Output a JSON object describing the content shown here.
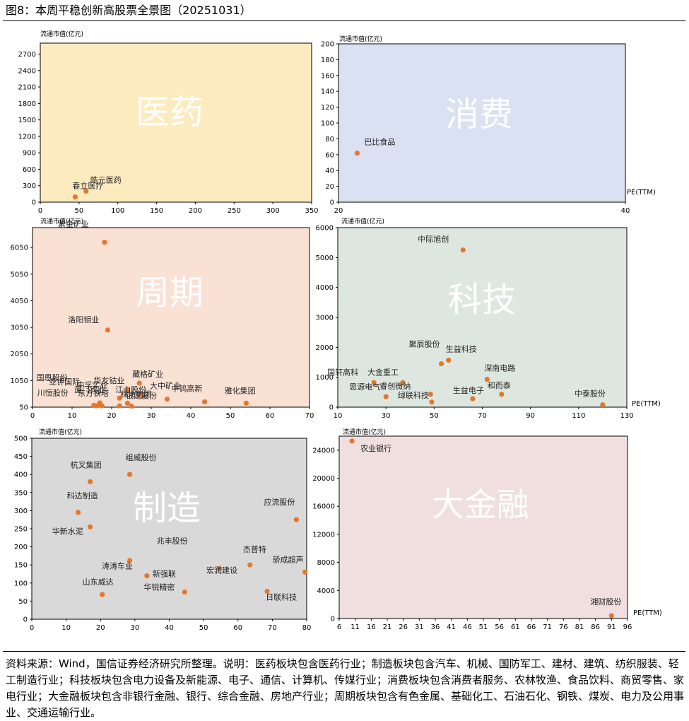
{
  "title": "图8：本周平稳创新高股票全景图（20251031）",
  "note": "资料来源：Wind，国信证券经济研究所整理。说明：医药板块包含医药行业；制造板块包含汽车、机械、国防军工、建材、建筑、纺织服装、轻工制造行业；科技板块包含电力设备及新能源、电子、通信、计算机、传媒行业；消费板块包含消费者服务、农林牧渔、食品饮料、商贸零售、家电行业；大金融板块包含非银行金融、银行、综合金融、房地产行业；周期板块包含有色金属、基础化工、石油石化、钢铁、煤炭、电力及公用事业、交通运输行业。",
  "colors": {
    "marker": "#E5772C",
    "watermark": "#ffffff"
  },
  "chart_data": [
    {
      "id": "pharma",
      "type": "scatter",
      "title": "医药",
      "bg": "#FDEBC0",
      "ylabel": "流通市值(亿元)",
      "xlabel": "",
      "xlim": [
        0,
        350
      ],
      "ylim": [
        0,
        2900
      ],
      "xticks": [
        0,
        50,
        100,
        150,
        200,
        250,
        300,
        350
      ],
      "yticks": [
        0,
        300,
        600,
        900,
        1200,
        1500,
        1800,
        2100,
        2400,
        2700
      ],
      "points": [
        {
          "name": "春立医疗",
          "x": 45,
          "y": 95
        },
        {
          "name": "皓元医药",
          "x": 59,
          "y": 200
        }
      ]
    },
    {
      "id": "consumer",
      "type": "scatter",
      "title": "消费",
      "bg": "#D9E1F3",
      "ylabel": "流通市值(亿元)",
      "xlabel": "PE(TTM)",
      "xlim": [
        20,
        40
      ],
      "ylim": [
        0,
        200
      ],
      "xticks": [
        20,
        40
      ],
      "yticks": [
        0,
        20,
        40,
        60,
        80,
        100,
        120,
        140,
        160,
        180,
        200
      ],
      "points": [
        {
          "name": "巴比食品",
          "x": 21.3,
          "y": 62
        }
      ]
    },
    {
      "id": "cyclical",
      "type": "scatter",
      "title": "周期",
      "bg": "#F9E1D4",
      "ylabel": "流通市值(亿元)",
      "xlabel": "",
      "xlim": [
        0,
        70
      ],
      "ylim": [
        50,
        6800
      ],
      "xticks": [
        0,
        10,
        20,
        30,
        40,
        50,
        60,
        70
      ],
      "yticks": [
        50,
        1050,
        2050,
        3050,
        4050,
        5050,
        6050
      ],
      "ytick_labels": [
        "50",
        "1050",
        "2050",
        "3050",
        "4050",
        "5050",
        "6050"
      ],
      "points": [
        {
          "name": "紫金矿业",
          "x": 18.2,
          "y": 6250
        },
        {
          "name": "洛阳钼业",
          "x": 19.0,
          "y": 2950
        },
        {
          "name": "华友钴业",
          "x": 24.0,
          "y": 720
        },
        {
          "name": "藏格矿业",
          "x": 27.0,
          "y": 950
        },
        {
          "name": "厦门钨业",
          "x": 22.0,
          "y": 390
        },
        {
          "name": "株冶集团",
          "x": 24.0,
          "y": 200
        },
        {
          "name": "大中矿业",
          "x": 27.5,
          "y": 460
        },
        {
          "name": "国恩股份",
          "x": 16.0,
          "y": 100
        },
        {
          "name": "亚钾国际",
          "x": 17.0,
          "y": 210
        },
        {
          "name": "中孚实业",
          "x": 16.5,
          "y": 110
        },
        {
          "name": "川恒股份",
          "x": 15.5,
          "y": 120
        },
        {
          "name": "东方铁塔",
          "x": 17.5,
          "y": 100
        },
        {
          "name": "江山股份",
          "x": 22.0,
          "y": 100
        },
        {
          "name": "银龙股份",
          "x": 25.0,
          "y": 90
        },
        {
          "name": "中钨高新",
          "x": 34.0,
          "y": 350
        },
        {
          "name": "雅化集团",
          "x": 43.5,
          "y": 250
        },
        {
          "name": "",
          "x": 54.0,
          "y": 200
        }
      ]
    },
    {
      "id": "tech",
      "type": "scatter",
      "title": "科技",
      "bg": "#DEE7DF",
      "ylabel": "流通市值(亿元)",
      "xlabel": "PE(TTM)",
      "xlim": [
        10,
        130
      ],
      "ylim": [
        0,
        6000
      ],
      "xticks": [
        10,
        30,
        50,
        70,
        90,
        110,
        130
      ],
      "yticks": [
        0,
        1000,
        2000,
        3000,
        4000,
        5000,
        6000
      ],
      "points": [
        {
          "name": "中际旭创",
          "x": 62,
          "y": 5250
        },
        {
          "name": "聚辰股份",
          "x": 53,
          "y": 1450
        },
        {
          "name": "生益科技",
          "x": 56,
          "y": 1570
        },
        {
          "name": "国轩高科",
          "x": 25,
          "y": 820
        },
        {
          "name": "大金重工",
          "x": 37,
          "y": 820
        },
        {
          "name": "深南电路",
          "x": 72,
          "y": 930
        },
        {
          "name": "思源电气",
          "x": 30,
          "y": 350
        },
        {
          "name": "睿创微纳",
          "x": 48.5,
          "y": 430
        },
        {
          "name": "绿联科技",
          "x": 49,
          "y": 170
        },
        {
          "name": "生益电子",
          "x": 66,
          "y": 280
        },
        {
          "name": "和而泰",
          "x": 78,
          "y": 430
        },
        {
          "name": "中泰股份",
          "x": 120,
          "y": 80
        }
      ]
    },
    {
      "id": "manufacturing",
      "type": "scatter",
      "title": "制造",
      "bg": "#D9D9D9",
      "ylabel": "流通市值(亿元)",
      "xlabel": "",
      "xlim": [
        0,
        80
      ],
      "ylim": [
        0,
        500
      ],
      "xticks": [
        0,
        10,
        20,
        30,
        40,
        50,
        60,
        70,
        80
      ],
      "yticks": [
        0,
        50,
        100,
        150,
        200,
        250,
        300,
        350,
        400,
        450,
        500
      ],
      "points": [
        {
          "name": "组威股份",
          "x": 28.5,
          "y": 400
        },
        {
          "name": "杭叉集团",
          "x": 17,
          "y": 380
        },
        {
          "name": "科达制造",
          "x": 13.5,
          "y": 295
        },
        {
          "name": "华新水泥",
          "x": 17,
          "y": 255
        },
        {
          "name": "应流股份",
          "x": 77,
          "y": 275
        },
        {
          "name": "兆丰股份",
          "x": 28.5,
          "y": 162
        },
        {
          "name": "涛涛车业",
          "x": 33.5,
          "y": 120
        },
        {
          "name": "新强联",
          "x": 33.5,
          "y": 120
        },
        {
          "name": "宏润建设",
          "x": 54.5,
          "y": 140
        },
        {
          "name": "杰普特",
          "x": 63.5,
          "y": 150
        },
        {
          "name": "骄成超声",
          "x": 79.5,
          "y": 130
        },
        {
          "name": "山东威达",
          "x": 20.5,
          "y": 68
        },
        {
          "name": "华锐精密",
          "x": 44.5,
          "y": 75
        },
        {
          "name": "日联科技",
          "x": 68.5,
          "y": 77
        }
      ]
    },
    {
      "id": "finance",
      "type": "scatter",
      "title": "大金融",
      "bg": "#F1DFE0",
      "ylabel": "流通市值(亿元)",
      "xlabel": "PE(TTM)",
      "xlim": [
        6,
        96
      ],
      "ylim": [
        0,
        26000
      ],
      "xticks": [
        6,
        11,
        16,
        21,
        26,
        31,
        36,
        41,
        46,
        51,
        56,
        61,
        66,
        71,
        76,
        81,
        86,
        91,
        96
      ],
      "yticks": [
        0,
        4000,
        8000,
        12000,
        16000,
        20000,
        24000
      ],
      "points": [
        {
          "name": "农业银行",
          "x": 10,
          "y": 25300
        },
        {
          "name": "湘财股份",
          "x": 91,
          "y": 400
        }
      ]
    }
  ]
}
